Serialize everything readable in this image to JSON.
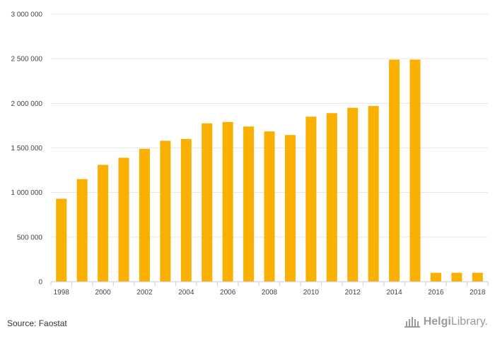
{
  "chart_data": {
    "type": "bar",
    "categories": [
      "1998",
      "1999",
      "2000",
      "2001",
      "2002",
      "2003",
      "2004",
      "2005",
      "2006",
      "2007",
      "2008",
      "2009",
      "2010",
      "2011",
      "2012",
      "2013",
      "2014",
      "2015",
      "2016",
      "2017",
      "2018"
    ],
    "values": [
      930000,
      1150000,
      1310000,
      1390000,
      1490000,
      1580000,
      1600000,
      1775000,
      1790000,
      1740000,
      1685000,
      1645000,
      1850000,
      1890000,
      1950000,
      1970000,
      2490000,
      2490000,
      100000,
      100000,
      100000
    ],
    "x_tick_labels": [
      "1998",
      "2000",
      "2002",
      "2004",
      "2006",
      "2008",
      "2010",
      "2012",
      "2014",
      "2016",
      "2018"
    ],
    "y_ticks": [
      0,
      500000,
      1000000,
      1500000,
      2000000,
      2500000,
      3000000
    ],
    "y_tick_labels": [
      "0",
      "500 000",
      "1 000 000",
      "1 500 000",
      "2 000 000",
      "2 500 000",
      "3 000 000"
    ],
    "ylim": [
      0,
      3000000
    ],
    "bar_color": "#F9B000",
    "grid": true,
    "title": "",
    "xlabel": "",
    "ylabel": ""
  },
  "footer": {
    "source": "Source: Faostat",
    "logo_bold": "Helgi",
    "logo_rest": "Library."
  }
}
